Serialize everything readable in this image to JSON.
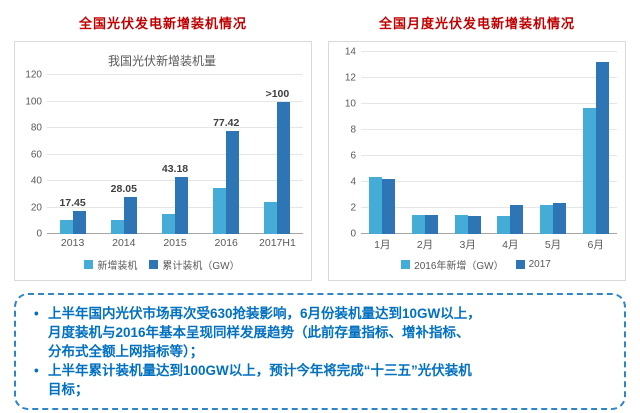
{
  "heading_color": "#c00000",
  "chart_data": [
    {
      "type": "bar",
      "heading": "全国光伏发电新增装机情况",
      "title": "我国光伏新增装机量",
      "categories": [
        "2013",
        "2014",
        "2015",
        "2016",
        "2017H1"
      ],
      "series": [
        {
          "name": "新增装机",
          "color": "#45abd7",
          "values": [
            10.95,
            10.6,
            15.13,
            34.54,
            24.4
          ]
        },
        {
          "name": "累计装机（GW）",
          "color": "#2e75b6",
          "values": [
            17.45,
            28.05,
            43.18,
            77.42,
            100
          ]
        }
      ],
      "bar_labels": [
        "17.45",
        "28.05",
        "43.18",
        "77.42",
        ">100"
      ],
      "xlabel": "",
      "ylabel": "",
      "ylim": [
        0,
        120
      ],
      "yticks": [
        0,
        20,
        40,
        60,
        80,
        100,
        120
      ],
      "grid": true,
      "legend_position": "bottom"
    },
    {
      "type": "bar",
      "heading": "全国月度光伏发电新增装机情况",
      "title": "",
      "categories": [
        "1月",
        "2月",
        "3月",
        "4月",
        "5月",
        "6月"
      ],
      "series": [
        {
          "name": "2016年新增（GW）",
          "color": "#45abd7",
          "values": [
            4.4,
            1.5,
            1.5,
            1.4,
            2.2,
            9.7
          ]
        },
        {
          "name": "2017",
          "color": "#2e75b6",
          "values": [
            4.2,
            1.5,
            1.4,
            2.2,
            2.4,
            13.2
          ]
        }
      ],
      "bar_labels": [],
      "xlabel": "",
      "ylabel": "",
      "ylim": [
        0,
        14
      ],
      "yticks": [
        0,
        2,
        4,
        6,
        8,
        10,
        12,
        14
      ],
      "grid": true,
      "legend_position": "bottom"
    }
  ],
  "notes": {
    "border_color": "#2e86c8",
    "text_color": "#0070c0",
    "bullets": [
      {
        "lines": [
          "上半年国内光伏市场再次受630抢装影响，6月份装机量达到10GW以上，",
          "月度装机与2016年基本呈现同样发展趋势（此前存量指标、增补指标、",
          "分布式全额上网指标等）；"
        ]
      },
      {
        "lines": [
          "上半年累计装机量达到100GW以上，预计今年将完成“十三五”光伏装机",
          "目标；"
        ]
      }
    ]
  }
}
